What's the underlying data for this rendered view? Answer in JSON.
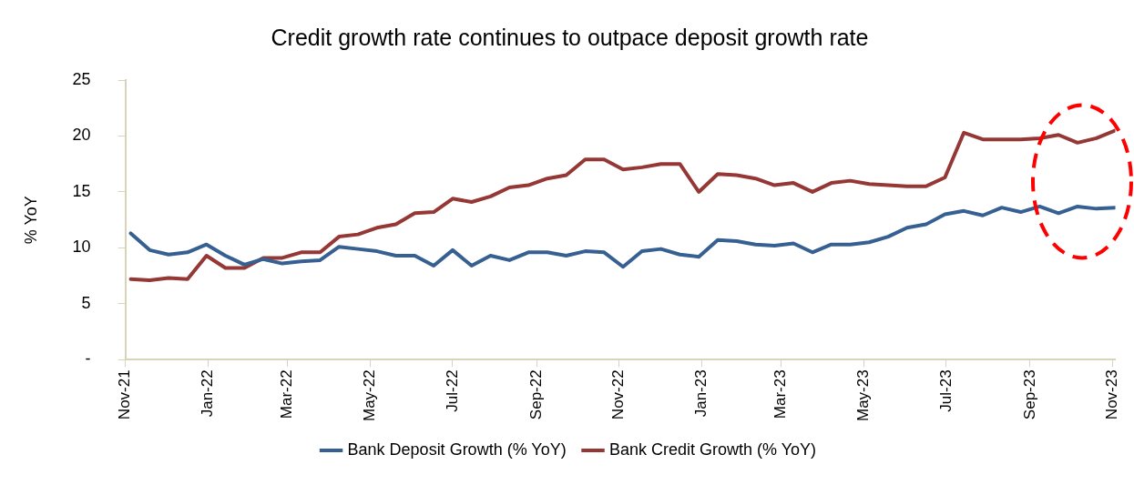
{
  "chart_data": {
    "type": "line",
    "title": "Credit growth rate continues to outpace deposit growth rate",
    "ylabel": "% YoY",
    "x": [
      "2021-11-05",
      "2021-11-19",
      "2021-12-03",
      "2021-12-17",
      "2021-12-31",
      "2022-01-14",
      "2022-01-28",
      "2022-02-11",
      "2022-02-25",
      "2022-03-11",
      "2022-03-25",
      "2022-04-08",
      "2022-04-22",
      "2022-05-06",
      "2022-05-20",
      "2022-06-03",
      "2022-06-17",
      "2022-07-01",
      "2022-07-15",
      "2022-07-29",
      "2022-08-12",
      "2022-08-26",
      "2022-09-09",
      "2022-09-23",
      "2022-10-07",
      "2022-10-21",
      "2022-11-04",
      "2022-11-18",
      "2022-12-02",
      "2022-12-16",
      "2022-12-30",
      "2023-01-13",
      "2023-01-27",
      "2023-02-10",
      "2023-02-24",
      "2023-03-10",
      "2023-03-24",
      "2023-04-07",
      "2023-04-21",
      "2023-05-05",
      "2023-05-19",
      "2023-06-02",
      "2023-06-16",
      "2023-06-30",
      "2023-07-14",
      "2023-07-28",
      "2023-08-11",
      "2023-08-25",
      "2023-09-08",
      "2023-09-22",
      "2023-10-06",
      "2023-10-20",
      "2023-11-03"
    ],
    "series": [
      {
        "name": "Bank Deposit Growth (% YoY)",
        "color": "#376092",
        "values": [
          11.3,
          9.8,
          9.4,
          9.6,
          10.3,
          9.3,
          8.5,
          9.0,
          8.6,
          8.8,
          8.9,
          10.1,
          9.9,
          9.7,
          9.3,
          9.3,
          8.4,
          9.8,
          8.4,
          9.3,
          8.9,
          9.6,
          9.6,
          9.3,
          9.7,
          9.6,
          8.3,
          9.7,
          9.9,
          9.4,
          9.2,
          10.7,
          10.6,
          10.3,
          10.2,
          10.4,
          9.6,
          10.3,
          10.3,
          10.5,
          11.0,
          11.8,
          12.1,
          13.0,
          13.3,
          12.9,
          13.6,
          13.2,
          13.7,
          13.1,
          13.7,
          13.5,
          13.6
        ]
      },
      {
        "name": "Bank Credit Growth (% YoY)",
        "color": "#953735",
        "values": [
          7.2,
          7.1,
          7.3,
          7.2,
          9.3,
          8.2,
          8.2,
          9.1,
          9.1,
          9.6,
          9.6,
          11.0,
          11.2,
          11.8,
          12.1,
          13.1,
          13.2,
          14.4,
          14.1,
          14.6,
          15.4,
          15.6,
          16.2,
          16.5,
          17.9,
          17.9,
          17.0,
          17.2,
          17.5,
          17.5,
          15.0,
          16.6,
          16.5,
          16.2,
          15.6,
          15.8,
          15.0,
          15.8,
          16.0,
          15.7,
          15.6,
          15.5,
          15.5,
          16.3,
          20.3,
          19.7,
          19.7,
          19.7,
          19.8,
          20.1,
          19.4,
          19.8,
          20.5
        ]
      }
    ],
    "xlim": [
      "2021-11-01",
      "2023-11-03"
    ],
    "xticks": [
      {
        "value": "2021-11-01",
        "label": "Nov-21"
      },
      {
        "value": "2022-01-01",
        "label": "Jan-22"
      },
      {
        "value": "2022-03-01",
        "label": "Mar-22"
      },
      {
        "value": "2022-05-01",
        "label": "May-22"
      },
      {
        "value": "2022-07-01",
        "label": "Jul-22"
      },
      {
        "value": "2022-09-01",
        "label": "Sep-22"
      },
      {
        "value": "2022-11-01",
        "label": "Nov-22"
      },
      {
        "value": "2023-01-01",
        "label": "Jan-23"
      },
      {
        "value": "2023-03-01",
        "label": "Mar-23"
      },
      {
        "value": "2023-05-01",
        "label": "May-23"
      },
      {
        "value": "2023-07-01",
        "label": "Jul-23"
      },
      {
        "value": "2023-09-01",
        "label": "Sep-23"
      },
      {
        "value": "2023-11-01",
        "label": "Nov-23"
      }
    ],
    "ylim": [
      0,
      25
    ],
    "yticks": [
      {
        "value": 0,
        "label": "-"
      },
      5,
      10,
      15,
      20,
      25
    ],
    "grid": false,
    "legend": "bottom",
    "marker": "none",
    "line_style": "solid"
  }
}
